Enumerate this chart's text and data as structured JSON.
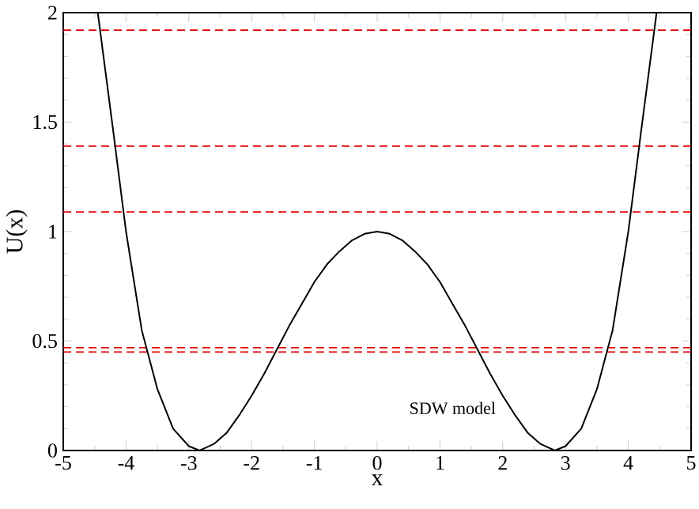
{
  "chart_data": {
    "type": "line",
    "xlabel": "x",
    "ylabel": "U(x)",
    "xlim": [
      -5,
      5
    ],
    "xticks": [
      -5,
      -4,
      -3,
      -2,
      -1,
      0,
      1,
      2,
      3,
      4,
      5
    ],
    "ylim": [
      0,
      2
    ],
    "yticks": [
      0,
      0.5,
      1,
      1.5,
      2
    ],
    "annotations": [
      "SDW model"
    ],
    "series": [
      {
        "color": "#000000",
        "x": [
          -4.45,
          -4.2,
          -4.0,
          -3.75,
          -3.5,
          -3.25,
          -3.0,
          -2.83,
          -2.6,
          -2.4,
          -2.2,
          -2.0,
          -1.8,
          -1.6,
          -1.4,
          -1.2,
          -1.0,
          -0.8,
          -0.6,
          -0.4,
          -0.2,
          0,
          0.2,
          0.4,
          0.6,
          0.8,
          1.0,
          1.2,
          1.4,
          1.6,
          1.8,
          2.0,
          2.2,
          2.4,
          2.6,
          2.83,
          3.0,
          3.25,
          3.5,
          3.75,
          4.0,
          4.2,
          4.45
        ],
        "values": [
          2.0,
          1.45,
          1.0,
          0.55,
          0.28,
          0.1,
          0.02,
          0,
          0.03,
          0.08,
          0.16,
          0.25,
          0.35,
          0.46,
          0.57,
          0.67,
          0.77,
          0.85,
          0.91,
          0.96,
          0.99,
          1.0,
          0.99,
          0.96,
          0.91,
          0.85,
          0.77,
          0.67,
          0.57,
          0.46,
          0.35,
          0.25,
          0.16,
          0.08,
          0.03,
          0,
          0.02,
          0.1,
          0.28,
          0.55,
          1.0,
          1.45,
          2.0
        ]
      }
    ],
    "ref_lines": [
      {
        "axis": "y",
        "value": 1.92,
        "color": "#e00000",
        "line_style": "dashed"
      },
      {
        "axis": "y",
        "value": 1.39,
        "color": "#e00000",
        "line_style": "dashed"
      },
      {
        "axis": "y",
        "value": 1.09,
        "color": "#e00000",
        "line_style": "dashed"
      },
      {
        "axis": "y",
        "value": 0.47,
        "color": "#e00000",
        "line_style": "dashed"
      },
      {
        "axis": "y",
        "value": 0.45,
        "color": "#e00000",
        "line_style": "dashed"
      }
    ]
  }
}
